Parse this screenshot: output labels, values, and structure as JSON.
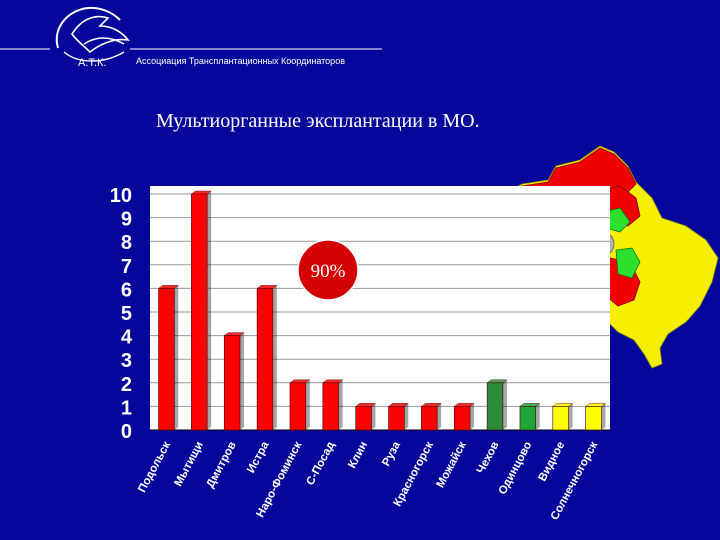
{
  "header": {
    "logo_text": "А.Т.К.",
    "organization": "Ассоциация Трансплантационных Координаторов"
  },
  "chart_data": {
    "type": "bar",
    "title": "Мультиорганные эксплантации в МО.",
    "annotation": "90%",
    "categories": [
      "Подольск",
      "Мытищи",
      "Дмитров",
      "Истра",
      "Наро-Фоминск",
      "С-Посад",
      "Клин",
      "Руза",
      "Красногорск",
      "Можайск",
      "Чехов",
      "Одинцово",
      "Видное",
      "Солнечногорск"
    ],
    "values": [
      6,
      10,
      4,
      6,
      2,
      2,
      1,
      1,
      1,
      1,
      2,
      1,
      1,
      1
    ],
    "bar_colors": [
      "#ff0000",
      "#ff0000",
      "#ff0000",
      "#ff0000",
      "#ff0000",
      "#ff0000",
      "#ff0000",
      "#ff0000",
      "#ff0000",
      "#ff0000",
      "#2e8b3a",
      "#1fa53a",
      "#ffff00",
      "#ffff00"
    ],
    "yticks": [
      "0",
      "1",
      "2",
      "3",
      "4",
      "5",
      "6",
      "7",
      "8",
      "9",
      "10"
    ],
    "ylim": [
      0,
      10
    ],
    "grid": true,
    "background": "#06069a",
    "plot_background": "#ffffff",
    "tick_color": "#ffffff",
    "map_colors": {
      "red": "#f10000",
      "yellow": "#f5f000",
      "green": "#2ee02e",
      "gray": "#b0b0b0"
    }
  }
}
